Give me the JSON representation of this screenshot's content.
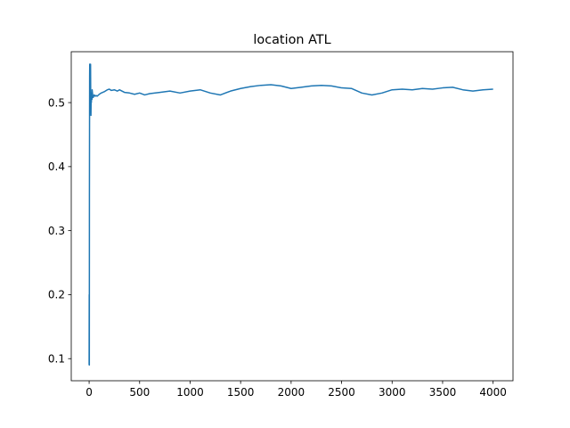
{
  "chart_data": {
    "type": "line",
    "title": "location ATL",
    "xlabel": "",
    "ylabel": "",
    "xlim": [
      -177,
      4197
    ],
    "ylim": [
      0.0655,
      0.5795
    ],
    "xticks": [
      0,
      500,
      1000,
      1500,
      2000,
      2500,
      3000,
      3500,
      4000
    ],
    "xtick_labels": [
      "0",
      "500",
      "1000",
      "1500",
      "2000",
      "2500",
      "3000",
      "3500",
      "4000"
    ],
    "yticks": [
      0.1,
      0.2,
      0.3,
      0.4,
      0.5
    ],
    "ytick_labels": [
      "0.1",
      "0.2",
      "0.3",
      "0.4",
      "0.5"
    ],
    "grid": false,
    "series": [
      {
        "color": "#1f77b4",
        "x": [
          0,
          1,
          2,
          3,
          4,
          5,
          6,
          8,
          10,
          12,
          14,
          16,
          18,
          20,
          22,
          25,
          28,
          30,
          35,
          40,
          45,
          50,
          60,
          70,
          80,
          100,
          120,
          150,
          180,
          200,
          220,
          250,
          280,
          300,
          350,
          400,
          450,
          500,
          550,
          600,
          700,
          800,
          900,
          1000,
          1100,
          1200,
          1300,
          1400,
          1500,
          1600,
          1700,
          1800,
          1900,
          2000,
          2100,
          2200,
          2300,
          2400,
          2500,
          2600,
          2700,
          2800,
          2900,
          3000,
          3100,
          3200,
          3300,
          3400,
          3500,
          3600,
          3700,
          3800,
          3900,
          4000
        ],
        "y": [
          0.09,
          0.2,
          0.09,
          0.35,
          0.45,
          0.54,
          0.56,
          0.52,
          0.55,
          0.53,
          0.56,
          0.5,
          0.48,
          0.51,
          0.5,
          0.515,
          0.505,
          0.52,
          0.512,
          0.508,
          0.51,
          0.512,
          0.51,
          0.511,
          0.51,
          0.513,
          0.515,
          0.517,
          0.52,
          0.521,
          0.519,
          0.52,
          0.518,
          0.52,
          0.516,
          0.515,
          0.513,
          0.515,
          0.512,
          0.514,
          0.516,
          0.518,
          0.515,
          0.518,
          0.52,
          0.515,
          0.512,
          0.518,
          0.522,
          0.525,
          0.527,
          0.528,
          0.526,
          0.522,
          0.524,
          0.526,
          0.527,
          0.526,
          0.523,
          0.522,
          0.515,
          0.512,
          0.515,
          0.52,
          0.521,
          0.52,
          0.522,
          0.521,
          0.523,
          0.524,
          0.52,
          0.518,
          0.52,
          0.521
        ]
      }
    ]
  }
}
